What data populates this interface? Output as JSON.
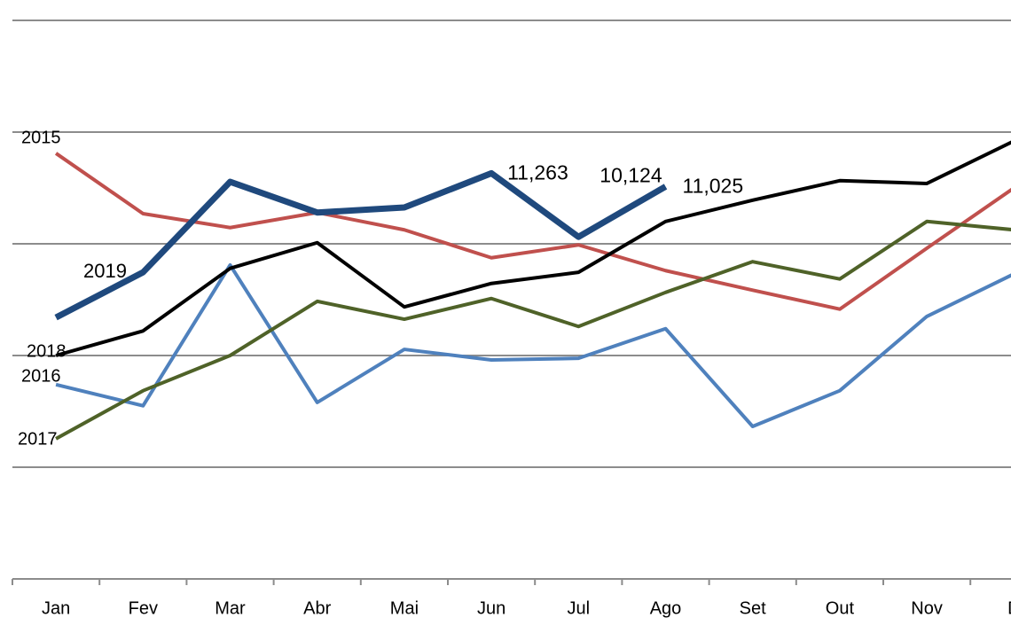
{
  "chart_data": {
    "type": "line",
    "categories": [
      "Jan",
      "Fev",
      "Mar",
      "Abr",
      "Mai",
      "Jun",
      "Jul",
      "Ago",
      "Set",
      "Out",
      "Nov",
      "D"
    ],
    "series": [
      {
        "name": "2015",
        "color": "#c0504d",
        "values": [
          11620,
          10540,
          10290,
          10560,
          10250,
          9750,
          9980,
          9520,
          9170,
          8830,
          9920,
          11000
        ]
      },
      {
        "name": "2016",
        "color": "#4f81bd",
        "values": [
          7480,
          7100,
          9620,
          7160,
          8110,
          7920,
          7950,
          8480,
          6730,
          7370,
          8700,
          9460
        ]
      },
      {
        "name": "2017",
        "color": "#4f6228",
        "values": [
          6510,
          7370,
          8000,
          8970,
          8650,
          9020,
          8520,
          9130,
          9680,
          9370,
          10400,
          10250
        ]
      },
      {
        "name": "2018",
        "color": "#000000",
        "values": [
          8000,
          8440,
          9560,
          10020,
          8870,
          9290,
          9490,
          10400,
          10780,
          11130,
          11080,
          11840
        ]
      },
      {
        "name": "2019",
        "color": "#1f497d",
        "values": [
          8680,
          9490,
          11110,
          10560,
          10650,
          11263,
          10124,
          11025,
          null,
          null,
          null,
          null
        ],
        "value_labels": [
          null,
          null,
          null,
          null,
          null,
          "11,263",
          "10,124",
          "11,025",
          null,
          null,
          null,
          null
        ]
      }
    ],
    "ylim": [
      4000,
      14000
    ],
    "yticks": [
      4000,
      6000,
      8000,
      10000,
      12000,
      14000
    ],
    "grid": true
  }
}
